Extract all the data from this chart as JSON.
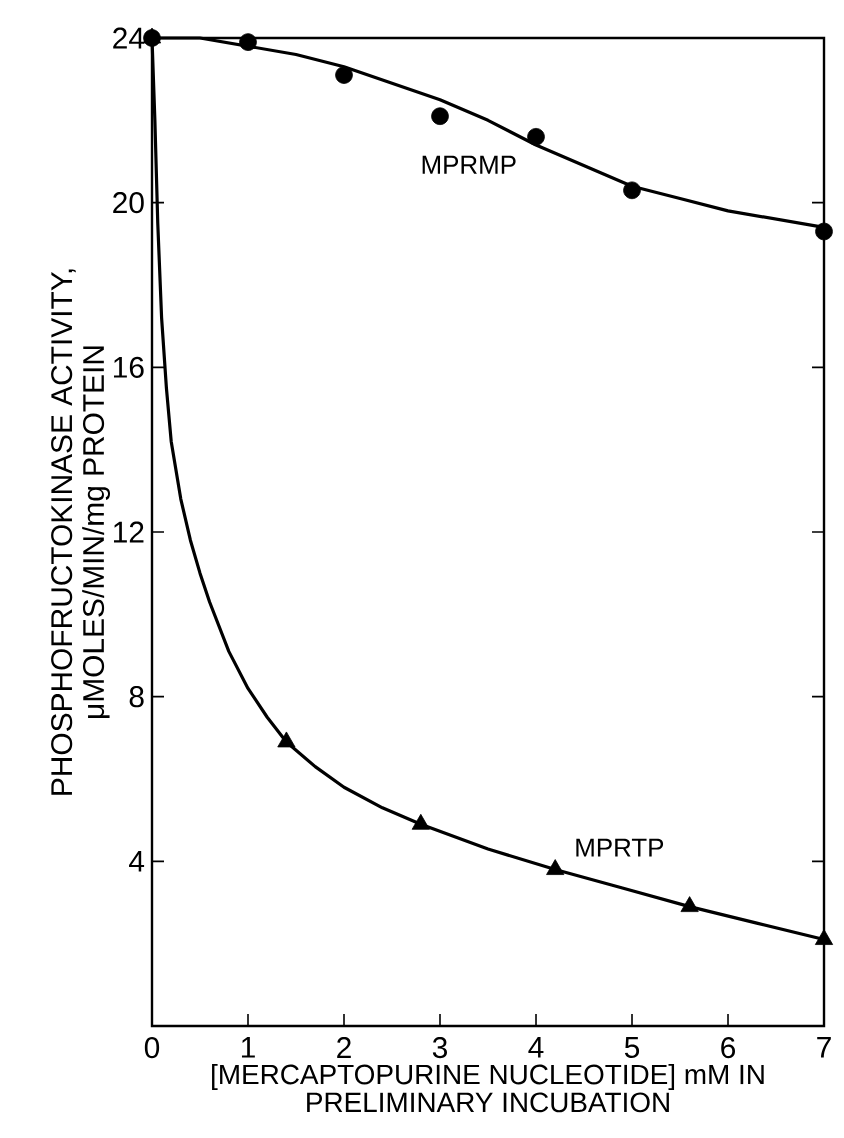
{
  "chart_data": {
    "type": "scatter",
    "xlabel": "[MERCAPTOPURINE NUCLEOTIDE] mM IN PRELIMINARY INCUBATION",
    "ylabel": "PHOSPHOFRUCTOKINASE ACTIVITY, μMOLES/MIN/mg PROTEIN",
    "xlim": [
      0,
      7
    ],
    "ylim": [
      0,
      24
    ],
    "xticks": [
      0,
      1,
      2,
      3,
      4,
      5,
      6,
      7
    ],
    "yticks": [
      4,
      8,
      12,
      16,
      20,
      24
    ],
    "grid": false,
    "series": [
      {
        "name": "MPRMP",
        "marker": "circle",
        "color": "#000000",
        "x": [
          0,
          1,
          2,
          3,
          4,
          5,
          7
        ],
        "values": [
          24,
          23.9,
          23.1,
          22.1,
          21.6,
          20.3,
          19.3
        ]
      },
      {
        "name": "MPRTP",
        "marker": "triangle",
        "color": "#000000",
        "x": [
          0,
          1.4,
          2.8,
          4.2,
          5.6,
          7
        ],
        "values": [
          24,
          6.9,
          4.9,
          3.8,
          2.9,
          2.1
        ]
      },
      {
        "type": "line",
        "marker": "none",
        "line_style": "solid",
        "color": "#000000",
        "x": [
          0,
          0.5,
          1,
          1.5,
          2,
          2.5,
          3,
          3.5,
          4,
          4.5,
          5,
          5.5,
          6,
          6.5,
          7
        ],
        "values": [
          24,
          24,
          23.8,
          23.6,
          23.3,
          22.9,
          22.5,
          22,
          21.4,
          20.9,
          20.4,
          20.1,
          19.8,
          19.6,
          19.4
        ]
      },
      {
        "type": "line",
        "marker": "none",
        "line_style": "solid",
        "color": "#000000",
        "x": [
          0,
          0.03,
          0.06,
          0.1,
          0.15,
          0.2,
          0.3,
          0.4,
          0.5,
          0.6,
          0.8,
          1,
          1.2,
          1.4,
          1.7,
          2,
          2.4,
          2.8,
          3.5,
          4.2,
          4.9,
          5.6,
          6.3,
          7
        ],
        "values": [
          24,
          22,
          19.5,
          17.2,
          15.5,
          14.2,
          12.8,
          11.8,
          11,
          10.3,
          9.1,
          8.2,
          7.5,
          6.9,
          6.3,
          5.8,
          5.3,
          4.9,
          4.3,
          3.8,
          3.35,
          2.9,
          2.5,
          2.1
        ]
      }
    ]
  }
}
